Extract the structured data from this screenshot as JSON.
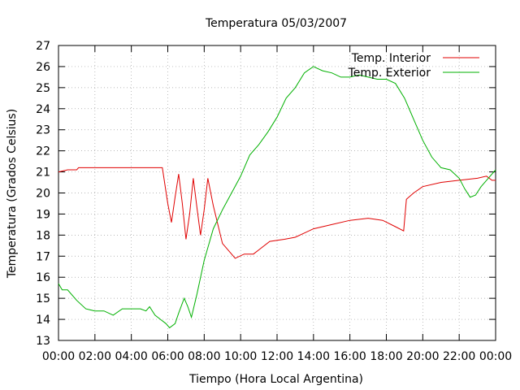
{
  "chart_data": {
    "type": "line",
    "title": "Temperatura 05/03/2007",
    "xlabel": "Tiempo (Hora Local Argentina)",
    "ylabel": "Temperatura (Grados Celsius)",
    "xlim": [
      "00:00",
      "24:00"
    ],
    "ylim": [
      13,
      27
    ],
    "grid": true,
    "legend_position": "top-right",
    "x_ticks": [
      "00:00",
      "02:00",
      "04:00",
      "06:00",
      "08:00",
      "10:00",
      "12:00",
      "14:00",
      "16:00",
      "18:00",
      "20:00",
      "22:00",
      "00:00"
    ],
    "y_ticks": [
      13,
      14,
      15,
      16,
      17,
      18,
      19,
      20,
      21,
      22,
      23,
      24,
      25,
      26,
      27
    ],
    "x_unit": "hours since 00:00",
    "series": [
      {
        "name": "Temp. Interior",
        "color": "#e00000",
        "points": [
          [
            0.0,
            21.0
          ],
          [
            0.5,
            21.1
          ],
          [
            1.0,
            21.1
          ],
          [
            1.1,
            21.2
          ],
          [
            3.0,
            21.2
          ],
          [
            4.5,
            21.2
          ],
          [
            5.7,
            21.2
          ],
          [
            6.0,
            19.5
          ],
          [
            6.2,
            18.6
          ],
          [
            6.4,
            19.8
          ],
          [
            6.6,
            20.9
          ],
          [
            6.8,
            19.5
          ],
          [
            7.0,
            17.8
          ],
          [
            7.2,
            19.0
          ],
          [
            7.4,
            20.7
          ],
          [
            7.6,
            19.3
          ],
          [
            7.8,
            18.0
          ],
          [
            8.0,
            19.2
          ],
          [
            8.2,
            20.7
          ],
          [
            8.5,
            19.4
          ],
          [
            9.0,
            17.6
          ],
          [
            9.5,
            17.1
          ],
          [
            9.7,
            16.9
          ],
          [
            10.2,
            17.1
          ],
          [
            10.7,
            17.1
          ],
          [
            11.0,
            17.3
          ],
          [
            11.6,
            17.7
          ],
          [
            12.4,
            17.8
          ],
          [
            13.0,
            17.9
          ],
          [
            14.0,
            18.3
          ],
          [
            15.0,
            18.5
          ],
          [
            16.0,
            18.7
          ],
          [
            17.0,
            18.8
          ],
          [
            17.8,
            18.7
          ],
          [
            18.5,
            18.4
          ],
          [
            18.95,
            18.2
          ],
          [
            19.1,
            19.7
          ],
          [
            19.5,
            20.0
          ],
          [
            20.0,
            20.3
          ],
          [
            21.0,
            20.5
          ],
          [
            22.0,
            20.6
          ],
          [
            23.0,
            20.7
          ],
          [
            23.5,
            20.8
          ],
          [
            23.8,
            20.6
          ],
          [
            24.0,
            20.6
          ]
        ]
      },
      {
        "name": "Temp. Exterior",
        "color": "#00b000",
        "points": [
          [
            0.0,
            15.7
          ],
          [
            0.2,
            15.4
          ],
          [
            0.5,
            15.4
          ],
          [
            1.0,
            14.9
          ],
          [
            1.5,
            14.5
          ],
          [
            2.0,
            14.4
          ],
          [
            2.5,
            14.4
          ],
          [
            3.0,
            14.2
          ],
          [
            3.5,
            14.5
          ],
          [
            4.0,
            14.5
          ],
          [
            4.5,
            14.5
          ],
          [
            4.8,
            14.4
          ],
          [
            5.0,
            14.6
          ],
          [
            5.3,
            14.2
          ],
          [
            5.6,
            14.0
          ],
          [
            5.9,
            13.8
          ],
          [
            6.1,
            13.6
          ],
          [
            6.4,
            13.8
          ],
          [
            6.6,
            14.3
          ],
          [
            6.9,
            15.0
          ],
          [
            7.1,
            14.6
          ],
          [
            7.3,
            14.1
          ],
          [
            7.6,
            15.2
          ],
          [
            8.0,
            16.8
          ],
          [
            8.5,
            18.3
          ],
          [
            9.0,
            19.2
          ],
          [
            9.5,
            20.0
          ],
          [
            10.0,
            20.8
          ],
          [
            10.5,
            21.8
          ],
          [
            11.0,
            22.3
          ],
          [
            11.5,
            22.9
          ],
          [
            12.0,
            23.6
          ],
          [
            12.5,
            24.5
          ],
          [
            13.0,
            25.0
          ],
          [
            13.5,
            25.7
          ],
          [
            14.0,
            26.0
          ],
          [
            14.5,
            25.8
          ],
          [
            15.0,
            25.7
          ],
          [
            15.5,
            25.5
          ],
          [
            16.0,
            25.5
          ],
          [
            16.5,
            25.6
          ],
          [
            17.0,
            25.5
          ],
          [
            17.5,
            25.4
          ],
          [
            18.0,
            25.4
          ],
          [
            18.5,
            25.2
          ],
          [
            19.0,
            24.5
          ],
          [
            19.5,
            23.5
          ],
          [
            20.0,
            22.5
          ],
          [
            20.5,
            21.7
          ],
          [
            21.0,
            21.2
          ],
          [
            21.5,
            21.1
          ],
          [
            22.0,
            20.7
          ],
          [
            22.3,
            20.2
          ],
          [
            22.6,
            19.8
          ],
          [
            22.9,
            19.9
          ],
          [
            23.2,
            20.3
          ],
          [
            23.6,
            20.7
          ],
          [
            24.0,
            21.1
          ]
        ]
      }
    ]
  }
}
